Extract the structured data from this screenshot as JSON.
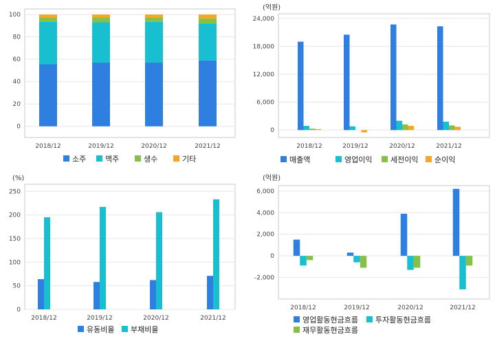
{
  "colors": {
    "blue": "#2f7fe0",
    "cyan": "#17bfd0",
    "green": "#86c046",
    "orange": "#f5a623"
  },
  "chart_data": [
    {
      "id": "c1",
      "type": "bar",
      "stacked": true,
      "categories": [
        "2018/12",
        "2019/12",
        "2020/12",
        "2021/12"
      ],
      "ylim": [
        -10,
        105
      ],
      "yticks": [
        0,
        20,
        40,
        60,
        80,
        100
      ],
      "unit": "",
      "series": [
        {
          "name": "소주",
          "color": "#2f7fe0",
          "values": [
            55.5,
            57,
            57,
            59
          ]
        },
        {
          "name": "맥주",
          "color": "#17bfd0",
          "values": [
            38,
            36,
            36.5,
            33
          ]
        },
        {
          "name": "생수",
          "color": "#86c046",
          "values": [
            3.5,
            4,
            3.5,
            4.5
          ]
        },
        {
          "name": "기타",
          "color": "#f5a623",
          "values": [
            3,
            3,
            3,
            3.5
          ]
        }
      ]
    },
    {
      "id": "c2",
      "type": "bar",
      "stacked": false,
      "categories": [
        "2018/12",
        "2019/12",
        "2020/12",
        "2021/12"
      ],
      "ylim": [
        -1600,
        25000
      ],
      "yticks": [
        0,
        6000,
        12000,
        18000,
        24000
      ],
      "unit": "(억원)",
      "series": [
        {
          "name": "매출액",
          "color": "#2f7fe0",
          "values": [
            19000,
            20500,
            22700,
            22300
          ]
        },
        {
          "name": "영업이익",
          "color": "#17bfd0",
          "values": [
            900,
            800,
            2000,
            1800
          ]
        },
        {
          "name": "세전이익",
          "color": "#86c046",
          "values": [
            300,
            0,
            1200,
            1000
          ]
        },
        {
          "name": "순이익",
          "color": "#f5a623",
          "values": [
            200,
            -500,
            900,
            700
          ]
        }
      ]
    },
    {
      "id": "c3",
      "type": "bar",
      "stacked": false,
      "categories": [
        "2018/12",
        "2019/12",
        "2020/12",
        "2021/12"
      ],
      "ylim": [
        0,
        265
      ],
      "yticks": [
        0,
        50,
        100,
        150,
        200,
        250
      ],
      "unit": "(%)",
      "series": [
        {
          "name": "유동비율",
          "color": "#2f7fe0",
          "values": [
            64,
            58,
            62,
            71
          ]
        },
        {
          "name": "부채비율",
          "color": "#17bfd0",
          "values": [
            195,
            217,
            206,
            233
          ]
        }
      ]
    },
    {
      "id": "c4",
      "type": "bar",
      "stacked": false,
      "categories": [
        "2018/12",
        "2019/12",
        "2020/12",
        "2021/12"
      ],
      "ylim": [
        -4000,
        6500
      ],
      "yticks": [
        -2000,
        0,
        2000,
        4000,
        6000
      ],
      "unit": "(억원)",
      "series": [
        {
          "name": "영업활동현금흐름",
          "color": "#2f7fe0",
          "values": [
            1500,
            300,
            3900,
            6200
          ]
        },
        {
          "name": "투자활동현금흐름",
          "color": "#17bfd0",
          "values": [
            -900,
            -600,
            -1300,
            -3100
          ]
        },
        {
          "name": "재무활동현금흐름",
          "color": "#86c046",
          "values": [
            -400,
            -1100,
            -1100,
            -900
          ]
        }
      ]
    }
  ]
}
